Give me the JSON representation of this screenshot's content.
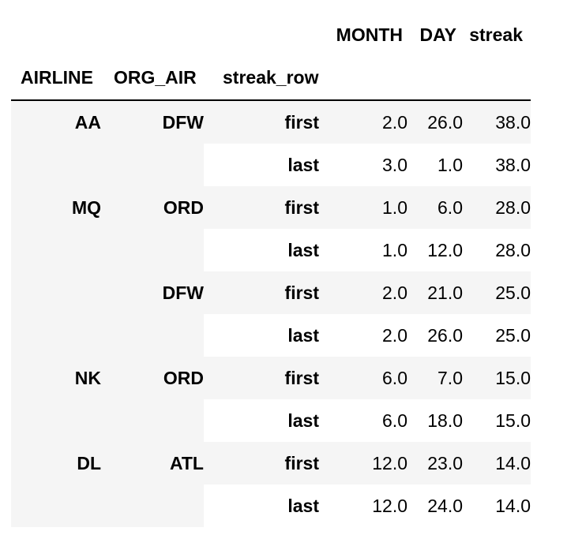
{
  "table": {
    "columns_top": [
      "MONTH",
      "DAY",
      "streak"
    ],
    "index_names": [
      "AIRLINE",
      "ORG_AIR",
      "streak_row"
    ],
    "rows": [
      {
        "airline": "AA",
        "org_air": "DFW",
        "streak_row": "first",
        "month": "2.0",
        "day": "26.0",
        "streak": "38.0"
      },
      {
        "airline": "",
        "org_air": "",
        "streak_row": "last",
        "month": "3.0",
        "day": "1.0",
        "streak": "38.0"
      },
      {
        "airline": "MQ",
        "org_air": "ORD",
        "streak_row": "first",
        "month": "1.0",
        "day": "6.0",
        "streak": "28.0"
      },
      {
        "airline": "",
        "org_air": "",
        "streak_row": "last",
        "month": "1.0",
        "day": "12.0",
        "streak": "28.0"
      },
      {
        "airline": "",
        "org_air": "DFW",
        "streak_row": "first",
        "month": "2.0",
        "day": "21.0",
        "streak": "25.0"
      },
      {
        "airline": "",
        "org_air": "",
        "streak_row": "last",
        "month": "2.0",
        "day": "26.0",
        "streak": "25.0"
      },
      {
        "airline": "NK",
        "org_air": "ORD",
        "streak_row": "first",
        "month": "6.0",
        "day": "7.0",
        "streak": "15.0"
      },
      {
        "airline": "",
        "org_air": "",
        "streak_row": "last",
        "month": "6.0",
        "day": "18.0",
        "streak": "15.0"
      },
      {
        "airline": "DL",
        "org_air": "ATL",
        "streak_row": "first",
        "month": "12.0",
        "day": "23.0",
        "streak": "14.0"
      },
      {
        "airline": "",
        "org_air": "",
        "streak_row": "last",
        "month": "12.0",
        "day": "24.0",
        "streak": "14.0"
      }
    ]
  },
  "colors": {
    "stripe": "#f5f5f5",
    "background": "#ffffff",
    "text": "#000000",
    "header_rule": "#000000"
  }
}
